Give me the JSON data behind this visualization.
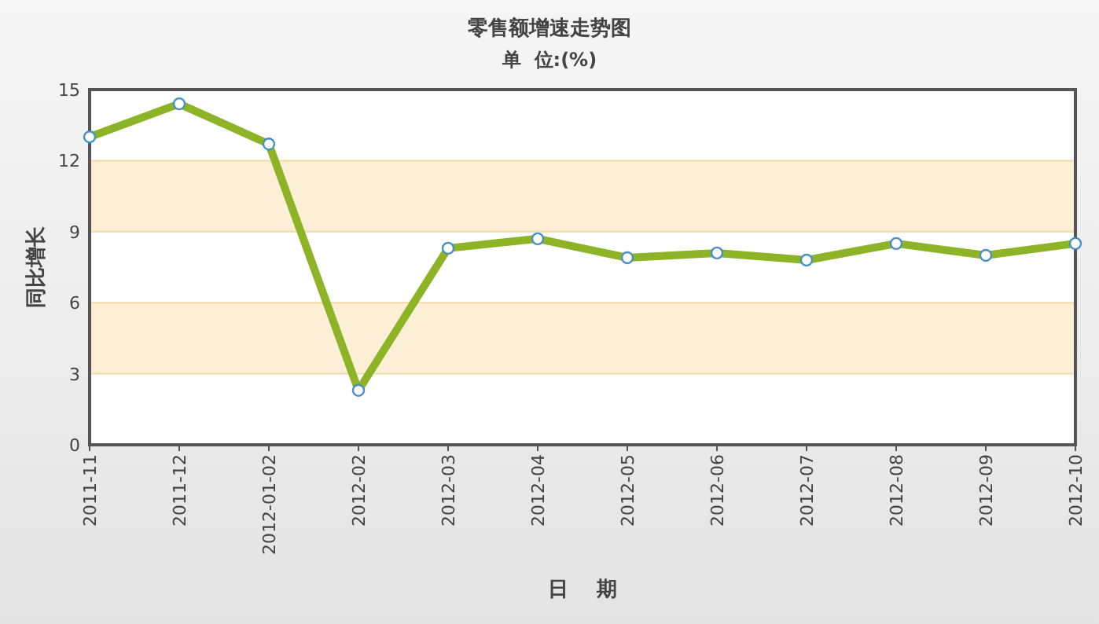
{
  "chart_data": {
    "type": "line",
    "title": "零售额增速走势图",
    "subtitle": "单  位:(%)",
    "xlabel": "日    期",
    "ylabel": "同比增长",
    "categories": [
      "2011-11",
      "2011-12",
      "2012-01-02",
      "2012-02",
      "2012-03",
      "2012-04",
      "2012-05",
      "2012-06",
      "2012-07",
      "2012-08",
      "2012-09",
      "2012-10"
    ],
    "series": [
      {
        "color": "#8cb426",
        "values": [
          13.0,
          14.4,
          12.7,
          2.3,
          8.3,
          8.7,
          7.9,
          8.1,
          7.8,
          8.5,
          8.0,
          8.5
        ]
      }
    ],
    "ylim": [
      0,
      15
    ],
    "yticks": [
      0,
      3,
      6,
      9,
      12,
      15
    ],
    "grid": "y",
    "marker": "circle",
    "line_style": "solid",
    "bands": [
      {
        "axis": "y",
        "from": 3,
        "to": 6,
        "color": "#fdeed6"
      },
      {
        "axis": "y",
        "from": 9,
        "to": 12,
        "color": "#fdeed6"
      }
    ]
  }
}
